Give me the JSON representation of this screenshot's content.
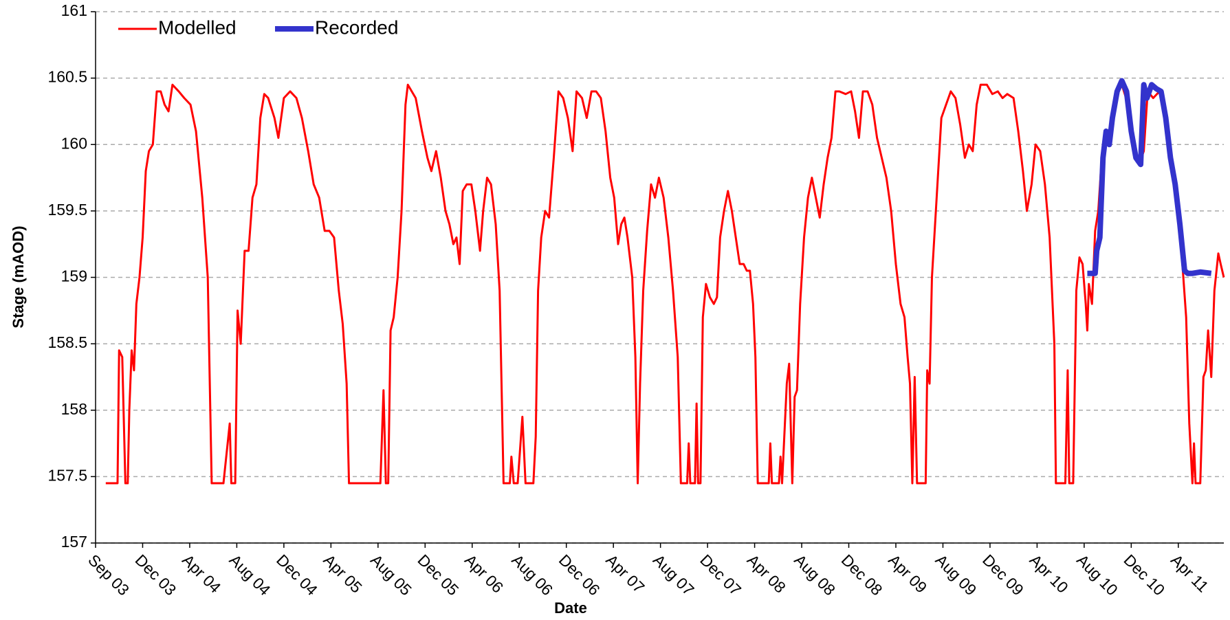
{
  "chart_data": {
    "type": "line",
    "xlabel": "Date",
    "ylabel": "Stage (mAOD)",
    "xlim": [
      0,
      2876
    ],
    "xticks": [
      {
        "value": 0,
        "label": "Sep 03"
      },
      {
        "value": 120,
        "label": "Dec 03"
      },
      {
        "value": 240,
        "label": "Apr 04"
      },
      {
        "value": 360,
        "label": "Aug 04"
      },
      {
        "value": 480,
        "label": "Dec 04"
      },
      {
        "value": 600,
        "label": "Apr 05"
      },
      {
        "value": 720,
        "label": "Aug 05"
      },
      {
        "value": 840,
        "label": "Dec 05"
      },
      {
        "value": 960,
        "label": "Apr 06"
      },
      {
        "value": 1080,
        "label": "Aug 06"
      },
      {
        "value": 1200,
        "label": "Dec 06"
      },
      {
        "value": 1320,
        "label": "Apr 07"
      },
      {
        "value": 1440,
        "label": "Aug 07"
      },
      {
        "value": 1560,
        "label": "Dec 07"
      },
      {
        "value": 1680,
        "label": "Apr 08"
      },
      {
        "value": 1800,
        "label": "Aug 08"
      },
      {
        "value": 1920,
        "label": "Dec 08"
      },
      {
        "value": 2040,
        "label": "Apr 09"
      },
      {
        "value": 2160,
        "label": "Aug 09"
      },
      {
        "value": 2280,
        "label": "Dec 09"
      },
      {
        "value": 2400,
        "label": "Apr 10"
      },
      {
        "value": 2520,
        "label": "Aug 10"
      },
      {
        "value": 2640,
        "label": "Dec 10"
      },
      {
        "value": 2760,
        "label": "Apr 11"
      }
    ],
    "ylim": [
      157,
      161
    ],
    "yticks": [
      157,
      157.5,
      158,
      158.5,
      159,
      159.5,
      160,
      160.5,
      161
    ],
    "grid": true,
    "legend": "top-left",
    "series": [
      {
        "name": "Modelled",
        "color": "#ff0000",
        "width": 3,
        "x": [
          26,
          56,
          60,
          68,
          76,
          82,
          86,
          92,
          98,
          104,
          112,
          120,
          128,
          136,
          146,
          156,
          166,
          176,
          186,
          196,
          212,
          226,
          242,
          256,
          272,
          286,
          296,
          326,
          342,
          346,
          356,
          362,
          370,
          380,
          390,
          400,
          410,
          420,
          430,
          440,
          456,
          466,
          480,
          496,
          512,
          526,
          542,
          556,
          570,
          584,
          596,
          608,
          620,
          630,
          640,
          646,
          666,
          726,
          734,
          740,
          746,
          752,
          760,
          770,
          780,
          790,
          796,
          816,
          832,
          846,
          856,
          868,
          880,
          892,
          902,
          912,
          920,
          928,
          936,
          946,
          958,
          968,
          980,
          988,
          998,
          1008,
          1020,
          1030,
          1040,
          1056,
          1060,
          1066,
          1076,
          1088,
          1096,
          1116,
          1122,
          1128,
          1136,
          1146,
          1156,
          1168,
          1180,
          1192,
          1204,
          1216,
          1226,
          1240,
          1252,
          1264,
          1276,
          1288,
          1300,
          1312,
          1322,
          1332,
          1340,
          1348,
          1356,
          1368,
          1376,
          1382,
          1388,
          1396,
          1406,
          1416,
          1426,
          1436,
          1448,
          1460,
          1472,
          1484,
          1492,
          1508,
          1512,
          1516,
          1528,
          1532,
          1536,
          1542,
          1548,
          1556,
          1566,
          1576,
          1584,
          1592,
          1602,
          1612,
          1622,
          1632,
          1642,
          1652,
          1660,
          1668,
          1676,
          1682,
          1688,
          1716,
          1720,
          1724,
          1742,
          1746,
          1750,
          1762,
          1768,
          1776,
          1782,
          1788,
          1796,
          1806,
          1816,
          1826,
          1836,
          1846,
          1856,
          1866,
          1876,
          1886,
          1896,
          1912,
          1926,
          1936,
          1946,
          1956,
          1968,
          1980,
          1992,
          2004,
          2016,
          2028,
          2040,
          2052,
          2062,
          2070,
          2076,
          2082,
          2088,
          2094,
          2116,
          2120,
          2126,
          2132,
          2144,
          2156,
          2168,
          2180,
          2192,
          2204,
          2216,
          2226,
          2236,
          2246,
          2256,
          2272,
          2286,
          2300,
          2312,
          2324,
          2340,
          2352,
          2364,
          2374,
          2386,
          2396,
          2408,
          2420,
          2432,
          2444,
          2448,
          2472,
          2478,
          2482,
          2492,
          2500,
          2508,
          2516,
          2524,
          2528,
          2532,
          2540,
          2548,
          2556,
          2566,
          2576,
          2588,
          2600,
          2616,
          2632,
          2644,
          2660,
          2672,
          2682,
          2696,
          2712,
          2728,
          2744,
          2756,
          2768,
          2780,
          2788,
          2796,
          2800,
          2804,
          2816,
          2824,
          2830,
          2836,
          2844,
          2852,
          2862,
          2868,
          2876
        ],
        "values": [
          157.45,
          157.45,
          158.45,
          158.4,
          157.45,
          157.45,
          158.0,
          158.45,
          158.3,
          158.8,
          159.0,
          159.3,
          159.8,
          159.95,
          160.0,
          160.4,
          160.4,
          160.3,
          160.25,
          160.45,
          160.4,
          160.35,
          160.3,
          160.1,
          159.6,
          159.0,
          157.45,
          157.45,
          157.9,
          157.45,
          157.45,
          158.75,
          158.5,
          159.2,
          159.2,
          159.6,
          159.7,
          160.2,
          160.38,
          160.35,
          160.2,
          160.05,
          160.35,
          160.4,
          160.35,
          160.2,
          159.95,
          159.7,
          159.6,
          159.35,
          159.35,
          159.3,
          158.9,
          158.65,
          158.2,
          157.45,
          157.45,
          157.45,
          158.15,
          157.45,
          157.45,
          158.6,
          158.7,
          159.0,
          159.5,
          160.3,
          160.45,
          160.35,
          160.1,
          159.9,
          159.8,
          159.95,
          159.75,
          159.5,
          159.4,
          159.25,
          159.3,
          159.1,
          159.65,
          159.7,
          159.7,
          159.5,
          159.2,
          159.5,
          159.75,
          159.7,
          159.4,
          158.9,
          157.45,
          157.45,
          157.65,
          157.45,
          157.45,
          157.95,
          157.45,
          157.45,
          157.8,
          158.9,
          159.3,
          159.5,
          159.45,
          159.9,
          160.4,
          160.35,
          160.2,
          159.95,
          160.4,
          160.35,
          160.2,
          160.4,
          160.4,
          160.35,
          160.1,
          159.75,
          159.6,
          159.25,
          159.4,
          159.45,
          159.3,
          159.0,
          158.4,
          157.45,
          158.2,
          158.9,
          159.35,
          159.7,
          159.6,
          159.75,
          159.6,
          159.3,
          158.9,
          158.4,
          157.45,
          157.45,
          157.75,
          157.45,
          157.45,
          158.05,
          157.45,
          157.45,
          158.7,
          158.95,
          158.85,
          158.8,
          158.85,
          159.3,
          159.5,
          159.65,
          159.5,
          159.3,
          159.1,
          159.1,
          159.05,
          159.05,
          158.8,
          158.4,
          157.45,
          157.45,
          157.75,
          157.45,
          157.45,
          157.65,
          157.45,
          158.2,
          158.35,
          157.45,
          158.1,
          158.15,
          158.8,
          159.3,
          159.6,
          159.75,
          159.6,
          159.45,
          159.7,
          159.9,
          160.05,
          160.4,
          160.4,
          160.38,
          160.4,
          160.25,
          160.05,
          160.4,
          160.4,
          160.3,
          160.05,
          159.9,
          159.75,
          159.5,
          159.1,
          158.8,
          158.7,
          158.4,
          158.2,
          157.45,
          158.25,
          157.45,
          157.45,
          158.3,
          158.2,
          159.0,
          159.6,
          160.2,
          160.3,
          160.4,
          160.35,
          160.15,
          159.9,
          160.0,
          159.95,
          160.3,
          160.45,
          160.45,
          160.38,
          160.4,
          160.35,
          160.38,
          160.35,
          160.1,
          159.8,
          159.5,
          159.7,
          160.0,
          159.95,
          159.7,
          159.3,
          158.5,
          157.45,
          157.45,
          158.3,
          157.45,
          157.45,
          158.9,
          159.15,
          159.1,
          158.8,
          158.6,
          158.95,
          158.8,
          159.35,
          159.5,
          159.95,
          160.1,
          160.0,
          160.35,
          160.45,
          160.3,
          160.0,
          159.85,
          159.95,
          160.4,
          160.35,
          160.4,
          160.2,
          159.85,
          159.6,
          159.2,
          158.7,
          157.9,
          157.45,
          157.75,
          157.45,
          157.45,
          158.25,
          158.3,
          158.6,
          158.25,
          158.9,
          159.18,
          159.1,
          159.0
        ]
      },
      {
        "name": "Recorded",
        "color": "#3333cc",
        "width": 8,
        "x": [
          2528,
          2548,
          2552,
          2560,
          2568,
          2576,
          2584,
          2592,
          2604,
          2616,
          2628,
          2640,
          2652,
          2664,
          2672,
          2680,
          2692,
          2704,
          2716,
          2728,
          2740,
          2752,
          2764,
          2776,
          2784,
          2796,
          2816,
          2844
        ],
        "values": [
          159.03,
          159.03,
          159.2,
          159.3,
          159.9,
          160.1,
          160.0,
          160.2,
          160.4,
          160.48,
          160.4,
          160.1,
          159.9,
          159.85,
          160.45,
          160.35,
          160.45,
          160.42,
          160.4,
          160.2,
          159.9,
          159.7,
          159.4,
          159.05,
          159.03,
          159.03,
          159.04,
          159.03
        ]
      }
    ]
  }
}
